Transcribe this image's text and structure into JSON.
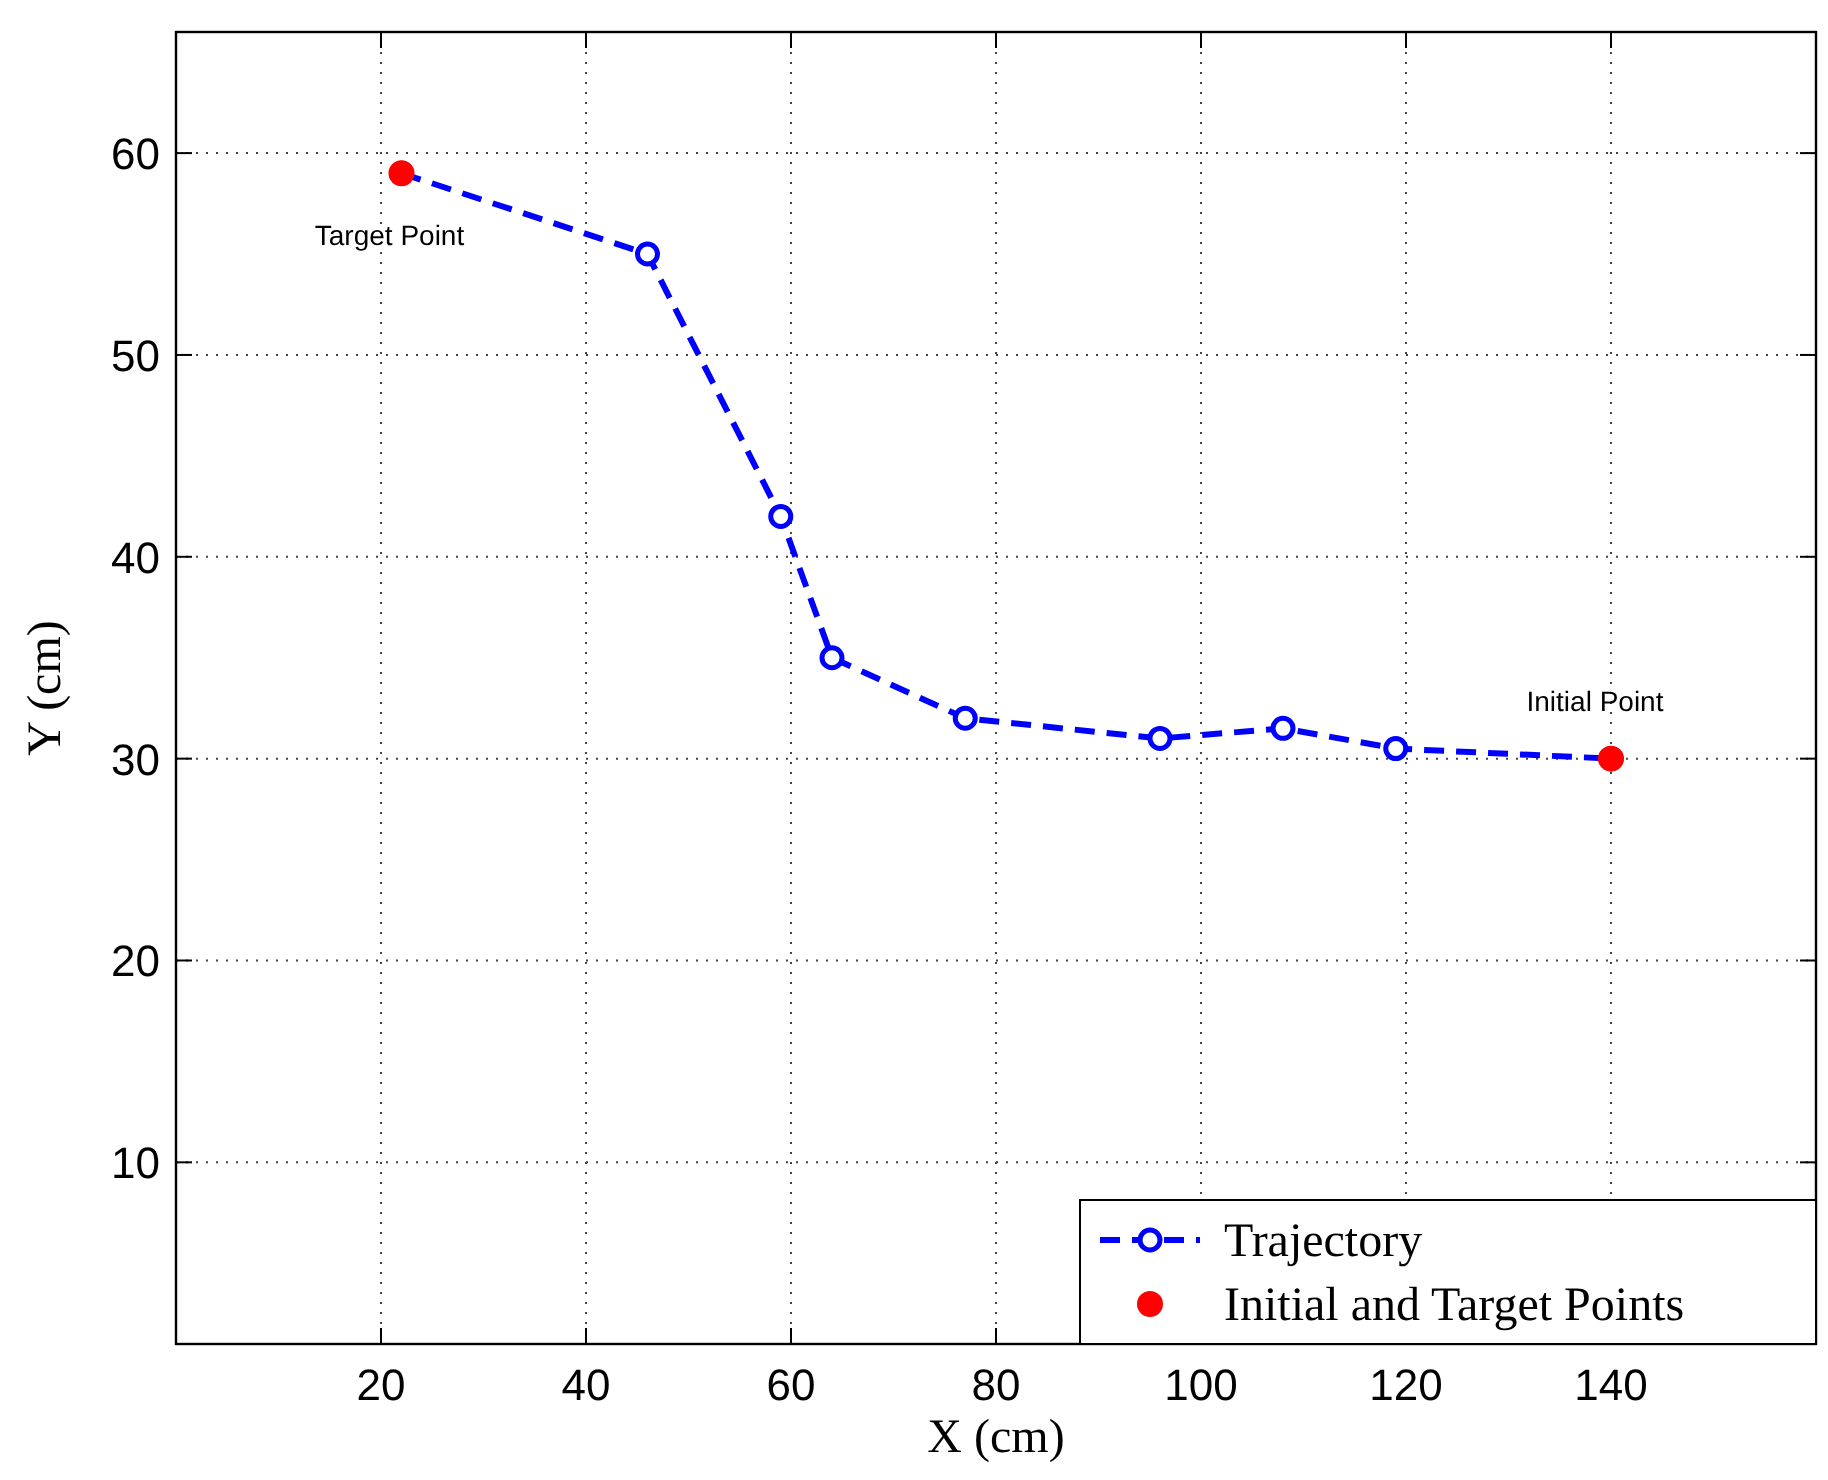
{
  "chart_data": {
    "type": "line",
    "xlabel": "X (cm)",
    "ylabel": "Y (cm)",
    "xlim": [
      0,
      160
    ],
    "ylim": [
      1,
      66
    ],
    "xticks": [
      20,
      40,
      60,
      80,
      100,
      120,
      140
    ],
    "yticks": [
      10,
      20,
      30,
      40,
      50,
      60
    ],
    "grid": true,
    "legend": "bottom right",
    "series": [
      {
        "name": "Trajectory",
        "color": "#0000ff",
        "marker": "circle",
        "line_style": "dashed",
        "x": [
          22,
          46,
          59,
          64,
          77,
          96,
          108,
          119,
          140
        ],
        "values": [
          59,
          55,
          42,
          35,
          32,
          31,
          31.5,
          30.5,
          30
        ]
      },
      {
        "name": "Initial and Target Points",
        "type": "scatter",
        "color": "#ff0000",
        "marker": "circle",
        "x": [
          140,
          22
        ],
        "values": [
          30,
          59
        ]
      }
    ],
    "annotations": [
      {
        "text": "Target Point",
        "x": 22,
        "y": 59
      },
      {
        "text": "Initial Point",
        "x": 140,
        "y": 30
      }
    ]
  }
}
